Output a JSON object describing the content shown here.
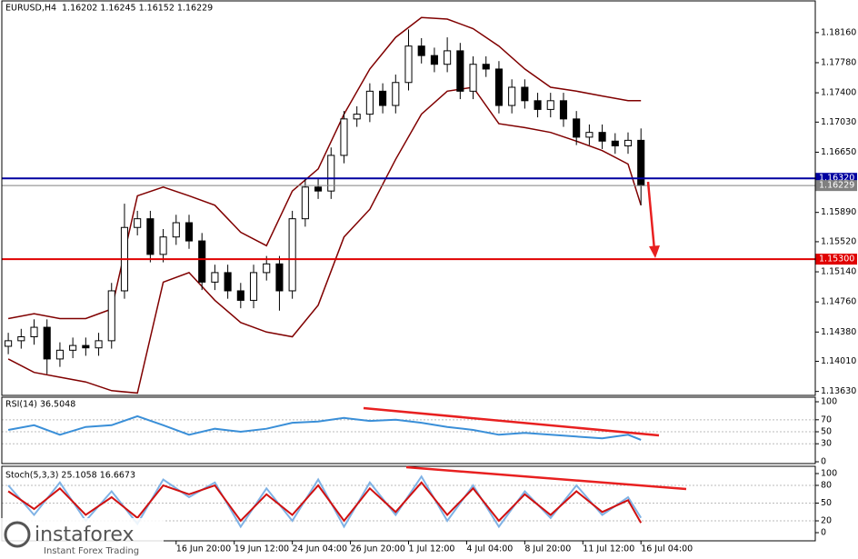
{
  "chart_data": [
    {
      "type": "candlestick",
      "title": "EURUSD,H4",
      "subtitle": "1.16202 1.16245 1.16152 1.16229",
      "xlim": [
        -0.5,
        62.5
      ],
      "ylim": [
        1.1358,
        1.1856
      ],
      "yticks": [
        {
          "value": 1.1816,
          "label": "1.18160"
        },
        {
          "value": 1.1778,
          "label": "1.17780"
        },
        {
          "value": 1.174,
          "label": "1.17400"
        },
        {
          "value": 1.1703,
          "label": "1.17030"
        },
        {
          "value": 1.1665,
          "label": "1.16650"
        },
        {
          "value": 1.1589,
          "label": "1.15890"
        },
        {
          "value": 1.1552,
          "label": "1.15520"
        },
        {
          "value": 1.1514,
          "label": "1.15140"
        },
        {
          "value": 1.1476,
          "label": "1.14760"
        },
        {
          "value": 1.1438,
          "label": "1.14380"
        },
        {
          "value": 1.1401,
          "label": "1.14010"
        },
        {
          "value": 1.1363,
          "label": "1.13630"
        }
      ],
      "open": [
        1.142,
        1.1427,
        1.1432,
        1.1444,
        1.1404,
        1.1415,
        1.1421,
        1.1418,
        1.1427,
        1.149,
        1.157,
        1.1581,
        1.1536,
        1.1558,
        1.1576,
        1.1553,
        1.1501,
        1.1513,
        1.149,
        1.1478,
        1.1513,
        1.1524,
        1.149,
        1.1581,
        1.1621,
        1.1616,
        1.1661,
        1.1707,
        1.1713,
        1.1742,
        1.1724,
        1.1753,
        1.1799,
        1.1787,
        1.1776,
        1.1793,
        1.1742,
        1.1776,
        1.177,
        1.1724,
        1.1747,
        1.173,
        1.1719,
        1.173,
        1.1707,
        1.1684,
        1.169,
        1.1679,
        1.1673,
        1.168
      ],
      "high": [
        1.1437,
        1.1442,
        1.1454,
        1.1454,
        1.1425,
        1.1431,
        1.1431,
        1.1437,
        1.15,
        1.16,
        1.1591,
        1.1591,
        1.1568,
        1.1586,
        1.1586,
        1.1563,
        1.1523,
        1.1523,
        1.15,
        1.1523,
        1.1534,
        1.1534,
        1.1591,
        1.1631,
        1.1631,
        1.1671,
        1.1717,
        1.1723,
        1.1752,
        1.1752,
        1.1763,
        1.182,
        1.1809,
        1.1797,
        1.181,
        1.1803,
        1.1786,
        1.1786,
        1.178,
        1.1757,
        1.1757,
        1.174,
        1.174,
        1.174,
        1.1717,
        1.17,
        1.17,
        1.1689,
        1.169,
        1.1695
      ],
      "low": [
        1.141,
        1.1417,
        1.1422,
        1.1385,
        1.1394,
        1.1405,
        1.1408,
        1.1408,
        1.1417,
        1.148,
        1.156,
        1.1526,
        1.1526,
        1.1548,
        1.1543,
        1.1491,
        1.1491,
        1.148,
        1.1468,
        1.1468,
        1.1503,
        1.1465,
        1.148,
        1.1571,
        1.1606,
        1.1606,
        1.1651,
        1.1697,
        1.1703,
        1.1714,
        1.1714,
        1.1743,
        1.1777,
        1.1766,
        1.1766,
        1.1732,
        1.1732,
        1.176,
        1.1714,
        1.1714,
        1.172,
        1.1709,
        1.1709,
        1.1697,
        1.1674,
        1.1674,
        1.1669,
        1.1663,
        1.1663,
        1.1598
      ],
      "close": [
        1.1427,
        1.1432,
        1.1444,
        1.1404,
        1.1415,
        1.1421,
        1.1418,
        1.1427,
        1.149,
        1.157,
        1.1581,
        1.1536,
        1.1558,
        1.1576,
        1.1553,
        1.1501,
        1.1513,
        1.149,
        1.1478,
        1.1513,
        1.1524,
        1.149,
        1.1581,
        1.1621,
        1.1616,
        1.1661,
        1.1707,
        1.1713,
        1.1742,
        1.1724,
        1.1753,
        1.1799,
        1.1787,
        1.1776,
        1.1793,
        1.1742,
        1.1776,
        1.177,
        1.1724,
        1.1747,
        1.173,
        1.1719,
        1.173,
        1.1707,
        1.1684,
        1.169,
        1.1679,
        1.1673,
        1.168,
        1.16229
      ],
      "series": [
        {
          "color": "#800000",
          "x": [
            0,
            2,
            4,
            6,
            8,
            10,
            12,
            14,
            16,
            18,
            20,
            22,
            24,
            26,
            28,
            30,
            32,
            34,
            36,
            38,
            40,
            42,
            44,
            46,
            48,
            49
          ],
          "values": [
            1.1455,
            1.1461,
            1.1455,
            1.1455,
            1.1467,
            1.161,
            1.1621,
            1.161,
            1.1598,
            1.1564,
            1.1547,
            1.1616,
            1.1644,
            1.1713,
            1.177,
            1.181,
            1.1835,
            1.1833,
            1.1821,
            1.1799,
            1.177,
            1.1747,
            1.1742,
            1.1736,
            1.173,
            1.173
          ]
        },
        {
          "color": "#800000",
          "x": [
            0,
            2,
            4,
            6,
            8,
            10,
            12,
            14,
            16,
            18,
            20,
            22,
            24,
            26,
            28,
            30,
            32,
            34,
            36,
            38,
            40,
            42,
            44,
            46,
            48,
            49
          ],
          "values": [
            1.1404,
            1.1387,
            1.1381,
            1.1375,
            1.1364,
            1.1361,
            1.1501,
            1.1513,
            1.1478,
            1.145,
            1.1438,
            1.1432,
            1.1472,
            1.1558,
            1.1593,
            1.1656,
            1.1713,
            1.1742,
            1.1747,
            1.1701,
            1.1696,
            1.169,
            1.1679,
            1.1667,
            1.165,
            1.1598
          ]
        }
      ],
      "levels": [
        {
          "value": 1.1632,
          "label": "1.16320",
          "color": "#0000a0"
        },
        {
          "value": 1.16229,
          "label": "1.16229",
          "color": "#808080"
        },
        {
          "value": 1.153,
          "label": "1.15300",
          "color": "#e00000"
        }
      ]
    },
    {
      "type": "line",
      "title": "RSI(14) 36.5048",
      "xlim": [
        -0.5,
        62.5
      ],
      "ylim": [
        -3,
        107.6
      ],
      "yticks": [
        100,
        70,
        50,
        30,
        0
      ],
      "series": [
        {
          "color": "#3a8fd8",
          "x": [
            0,
            2,
            4,
            6,
            8,
            10,
            12,
            14,
            16,
            18,
            20,
            22,
            24,
            26,
            28,
            30,
            32,
            34,
            36,
            38,
            40,
            42,
            44,
            46,
            48,
            49
          ],
          "values": [
            53,
            61,
            45,
            58,
            61,
            76,
            61,
            45,
            55,
            50,
            55,
            65,
            67,
            73,
            68,
            70,
            65,
            58,
            53,
            45,
            48,
            45,
            42,
            39,
            45,
            36.5048
          ]
        }
      ]
    },
    {
      "type": "line",
      "title": "Stoch(5,3,3) 25.1058 16.6673",
      "xlim": [
        -0.5,
        62.5
      ],
      "ylim": [
        -13.8,
        112.3
      ],
      "yticks": [
        100,
        80,
        50,
        20,
        0
      ],
      "xticks": [
        {
          "value": 13,
          "label": "16 Jun 20:00"
        },
        {
          "value": 17.5,
          "label": "19 Jun 12:00"
        },
        {
          "value": 22,
          "label": "24 Jun 04:00"
        },
        {
          "value": 26.5,
          "label": "26 Jun 20:00"
        },
        {
          "value": 31,
          "label": "1 Jul 12:00"
        },
        {
          "value": 35.5,
          "label": "4 Jul 04:00"
        },
        {
          "value": 40,
          "label": "8 Jul 20:00"
        },
        {
          "value": 44.5,
          "label": "11 Jul 12:00"
        },
        {
          "value": 49,
          "label": "16 Jul 04:00"
        }
      ],
      "series": [
        {
          "color": "#7fb2e5",
          "x": [
            0,
            2,
            4,
            6,
            8,
            10,
            12,
            14,
            16,
            18,
            20,
            22,
            24,
            26,
            28,
            30,
            32,
            34,
            36,
            38,
            40,
            42,
            44,
            46,
            48,
            49
          ],
          "values": [
            80,
            30,
            85,
            20,
            70,
            15,
            90,
            60,
            85,
            10,
            75,
            20,
            90,
            10,
            85,
            30,
            95,
            20,
            80,
            10,
            70,
            25,
            80,
            30,
            60,
            25.1058
          ]
        },
        {
          "color": "#d01010",
          "x": [
            0,
            2,
            4,
            6,
            8,
            10,
            12,
            14,
            16,
            18,
            20,
            22,
            24,
            26,
            28,
            30,
            32,
            34,
            36,
            38,
            40,
            42,
            44,
            46,
            48,
            49
          ],
          "values": [
            70,
            40,
            75,
            30,
            60,
            25,
            80,
            65,
            80,
            20,
            65,
            30,
            80,
            20,
            75,
            35,
            85,
            30,
            75,
            20,
            65,
            30,
            70,
            35,
            55,
            16.6673
          ]
        }
      ]
    }
  ],
  "logo": {
    "name": "instaforex",
    "tagline": "Instant Forex Trading"
  }
}
